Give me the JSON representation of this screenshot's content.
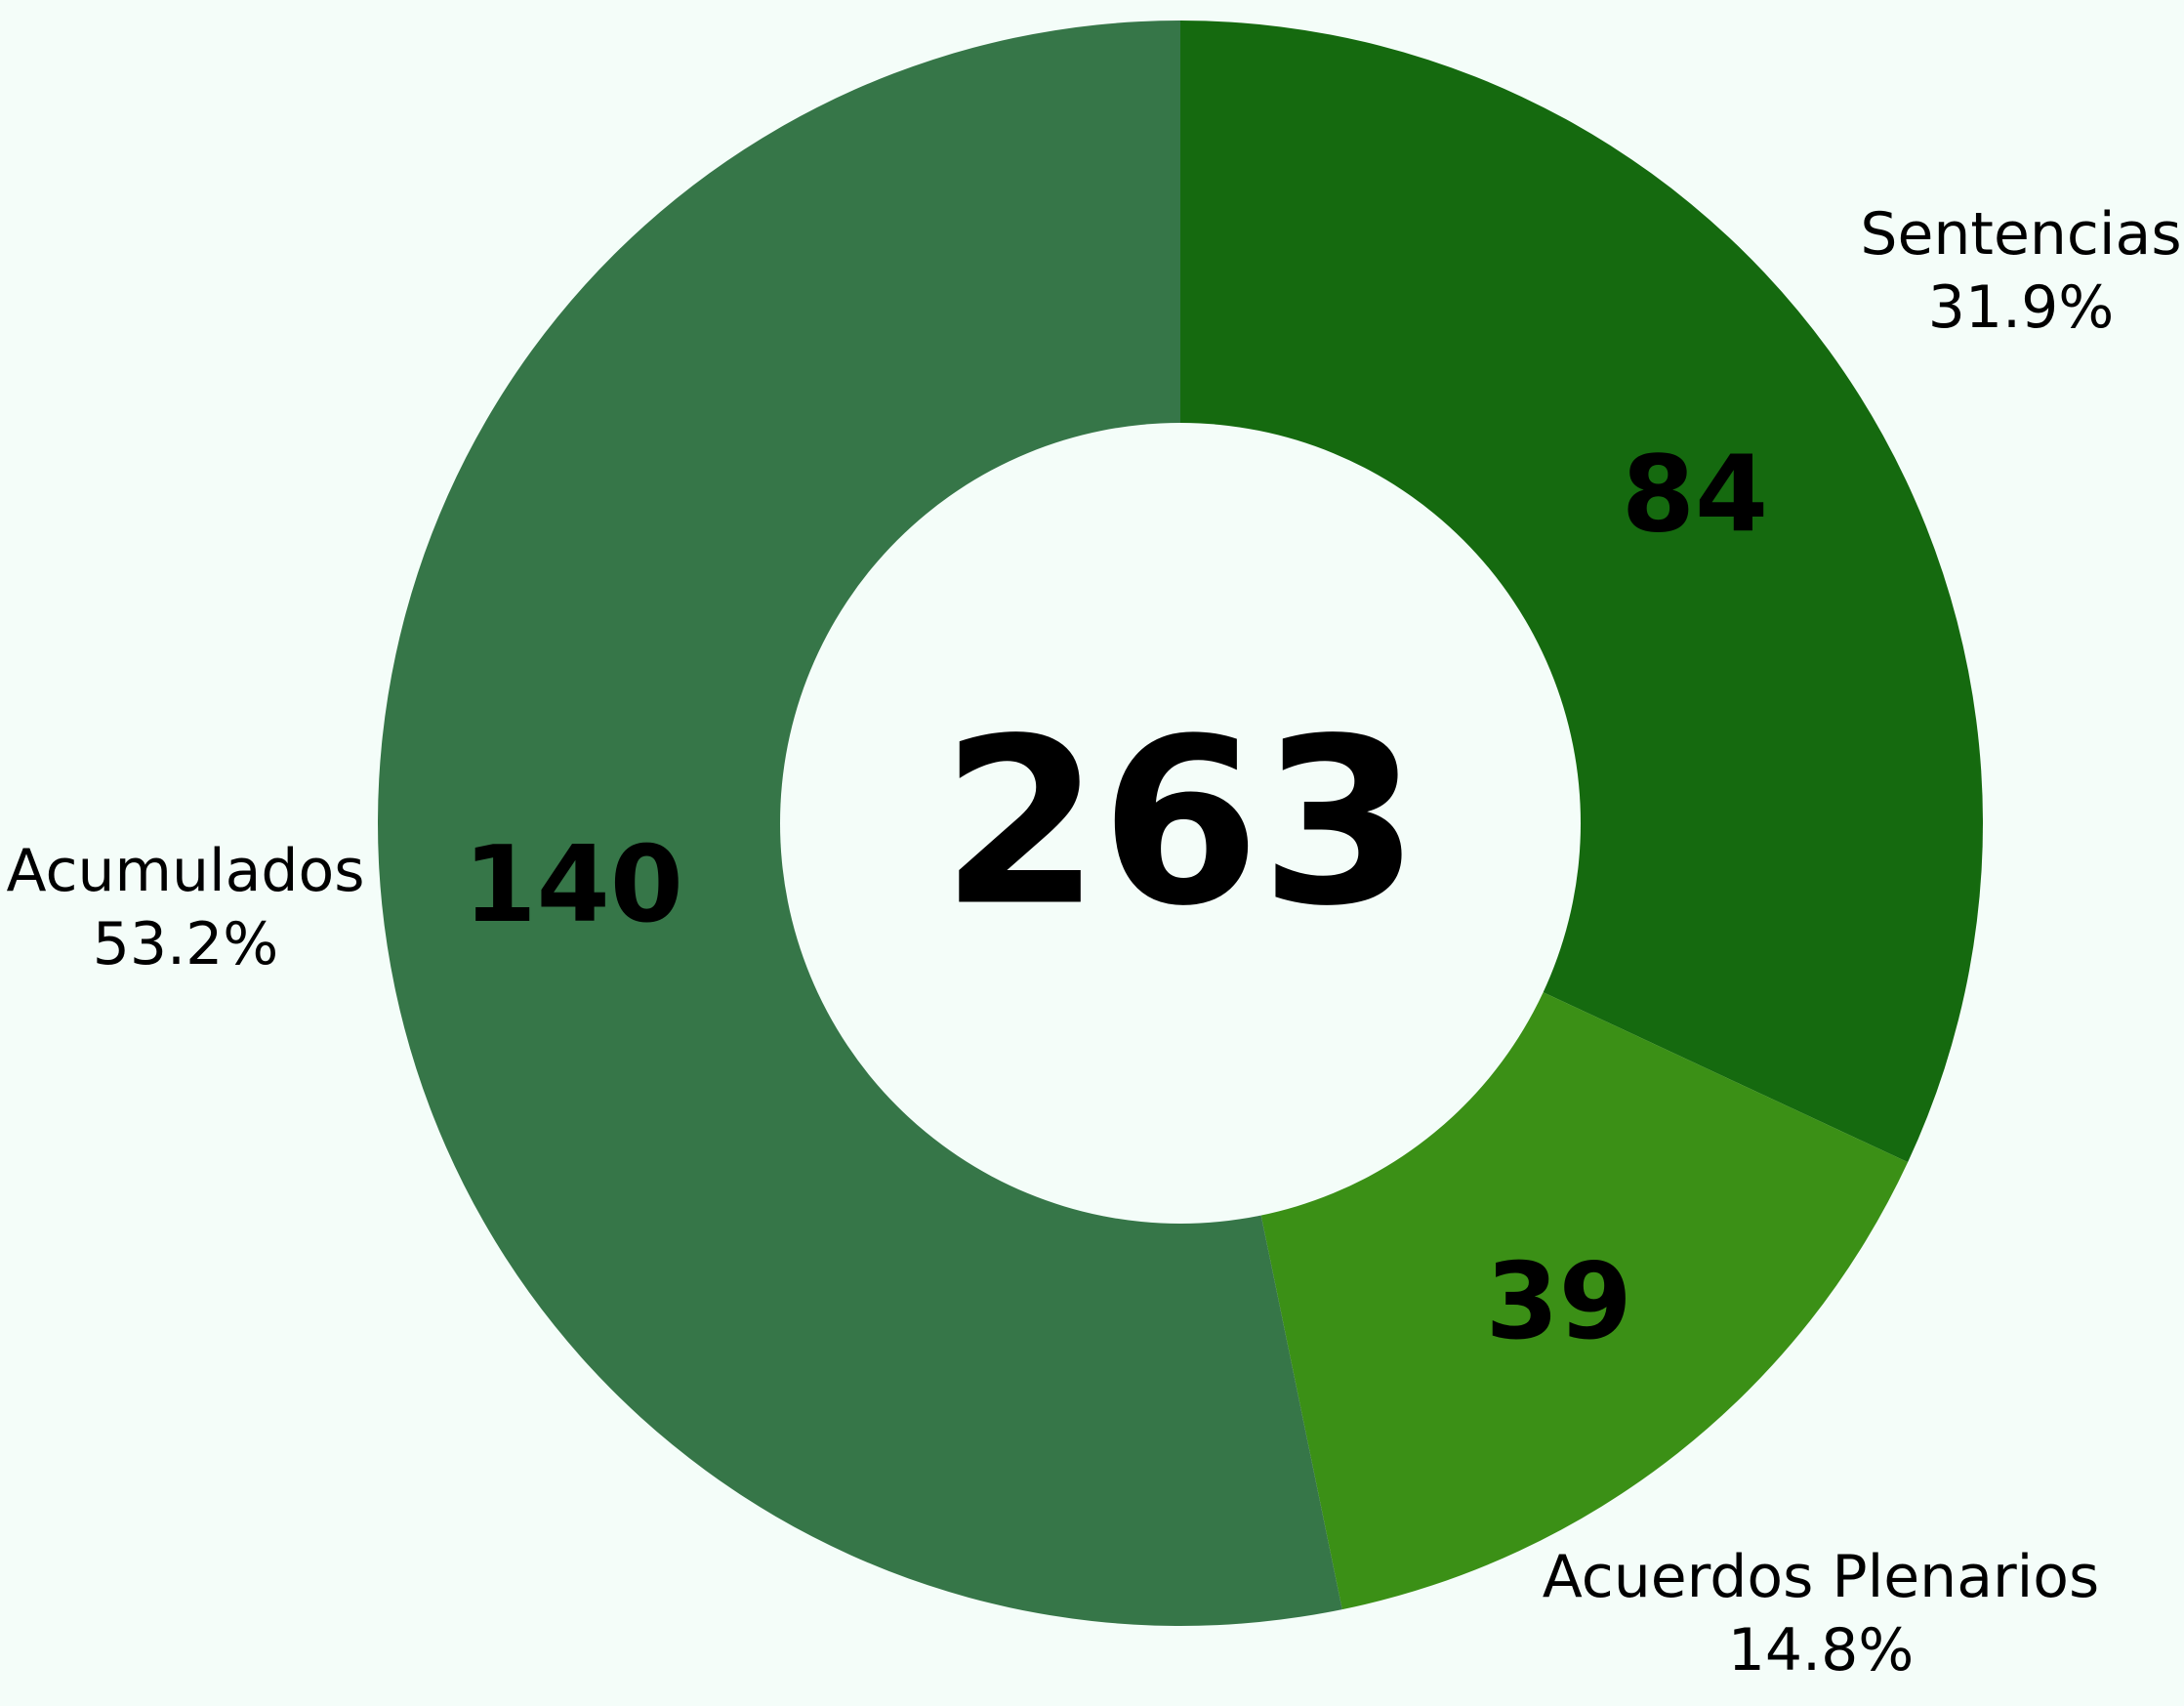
{
  "chart_data": {
    "type": "pie",
    "variant": "donut",
    "total": "263",
    "slices": [
      {
        "label": "Sentencias",
        "value": 84,
        "value_text": "84",
        "percent_text": "31.9%",
        "color": "#156a0f"
      },
      {
        "label": "Acuerdos Plenarios",
        "value": 39,
        "value_text": "39",
        "percent_text": "14.8%",
        "color": "#3b9016"
      },
      {
        "label": "Acumulados",
        "value": 140,
        "value_text": "140",
        "percent_text": "53.2%",
        "color": "#367648"
      }
    ],
    "start_angle": "top",
    "direction": "clockwise",
    "legend": "none",
    "background": "#f4fdf9"
  }
}
